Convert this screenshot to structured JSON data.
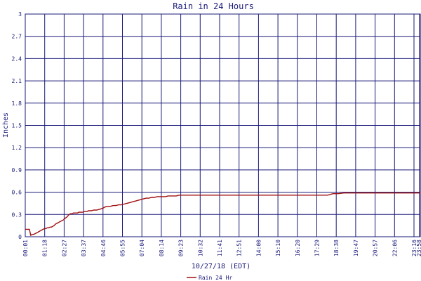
{
  "chart_data": {
    "type": "line",
    "title": "Rain in 24 Hours",
    "xlabel": "10/27/18 (EDT)",
    "ylabel": "Inches",
    "ylim": [
      0,
      3
    ],
    "yticks": [
      "0",
      "0.3",
      "0.6",
      "0.9",
      "1.2",
      "1.5",
      "1.8",
      "2.1",
      "2.4",
      "2.7",
      "3"
    ],
    "xticks": [
      "00:01",
      "01:18",
      "02:27",
      "03:37",
      "04:46",
      "05:55",
      "07:04",
      "08:14",
      "09:23",
      "10:32",
      "11:41",
      "12:51",
      "14:00",
      "15:10",
      "16:20",
      "17:29",
      "18:38",
      "19:47",
      "20:57",
      "22:06",
      "23:16",
      "23:58"
    ],
    "grid": true,
    "colors": {
      "grid": "#1a1a7a",
      "series": "#a01010",
      "text": "#1a1a7a"
    },
    "series": [
      {
        "name": "Rain 24 Hr",
        "x": [
          0,
          5,
          10,
          15,
          20,
          25,
          30,
          35,
          40,
          45,
          50,
          55,
          60,
          65,
          70,
          75,
          80,
          85,
          90,
          95,
          100,
          105,
          110,
          115,
          120,
          125,
          130,
          135,
          140,
          145,
          150,
          155,
          160,
          165,
          170,
          175,
          180,
          185,
          190,
          195,
          200,
          205,
          210,
          215,
          220,
          225,
          230,
          235,
          240,
          250,
          260,
          270,
          280,
          290,
          300,
          310,
          320,
          330,
          340,
          350,
          360,
          370,
          380,
          390,
          400,
          410,
          420,
          430,
          440,
          450,
          460,
          470,
          480,
          490,
          500,
          510,
          520,
          530,
          540,
          550,
          560,
          570,
          580,
          590,
          600,
          610,
          620,
          630,
          640,
          650,
          660,
          670,
          680,
          690,
          700,
          710,
          720,
          740,
          760,
          780,
          800,
          820,
          840,
          860,
          880,
          900,
          920,
          940,
          960,
          980,
          1000,
          1020,
          1040,
          1060,
          1080,
          1100,
          1110,
          1120,
          1140,
          1160,
          1180,
          1200,
          1220,
          1240,
          1260,
          1280,
          1300,
          1320,
          1340,
          1360,
          1380,
          1400,
          1420,
          1438
        ],
        "y": [
          0.1,
          0.1,
          0.1,
          0.1,
          0.02,
          0.03,
          0.03,
          0.04,
          0.05,
          0.06,
          0.07,
          0.08,
          0.09,
          0.1,
          0.11,
          0.11,
          0.12,
          0.12,
          0.13,
          0.13,
          0.14,
          0.15,
          0.17,
          0.18,
          0.19,
          0.2,
          0.21,
          0.22,
          0.23,
          0.25,
          0.26,
          0.28,
          0.3,
          0.31,
          0.31,
          0.32,
          0.32,
          0.32,
          0.32,
          0.33,
          0.33,
          0.33,
          0.33,
          0.34,
          0.34,
          0.34,
          0.35,
          0.35,
          0.35,
          0.36,
          0.36,
          0.37,
          0.38,
          0.4,
          0.41,
          0.41,
          0.42,
          0.42,
          0.43,
          0.43,
          0.44,
          0.45,
          0.46,
          0.47,
          0.48,
          0.49,
          0.5,
          0.51,
          0.52,
          0.52,
          0.53,
          0.53,
          0.54,
          0.54,
          0.54,
          0.54,
          0.55,
          0.55,
          0.55,
          0.55,
          0.56,
          0.56,
          0.56,
          0.56,
          0.56,
          0.56,
          0.56,
          0.56,
          0.56,
          0.56,
          0.56,
          0.56,
          0.56,
          0.56,
          0.56,
          0.56,
          0.56,
          0.56,
          0.56,
          0.56,
          0.56,
          0.56,
          0.56,
          0.56,
          0.56,
          0.56,
          0.56,
          0.56,
          0.56,
          0.56,
          0.56,
          0.56,
          0.56,
          0.56,
          0.56,
          0.56,
          0.57,
          0.58,
          0.58,
          0.59,
          0.59,
          0.59,
          0.59,
          0.59,
          0.59,
          0.59,
          0.59,
          0.59,
          0.59,
          0.59,
          0.59,
          0.59,
          0.59,
          0.59
        ]
      }
    ],
    "legend": "bottom-center"
  }
}
